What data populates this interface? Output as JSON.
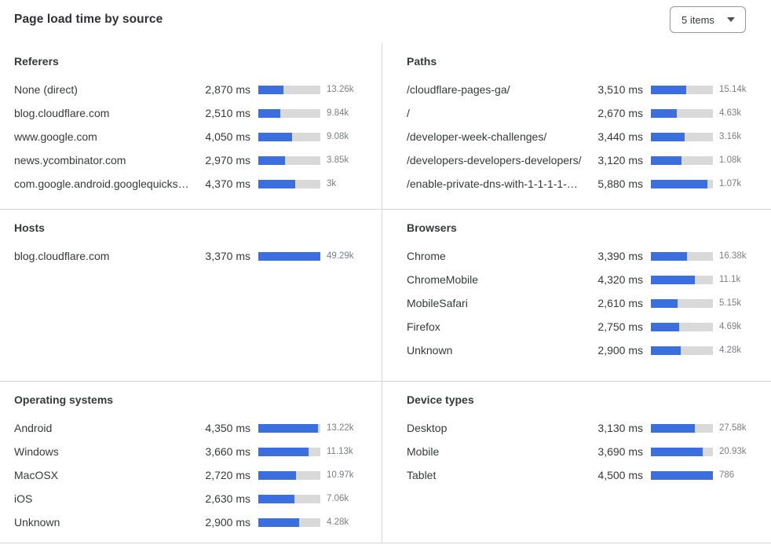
{
  "page": {
    "title": "Page load time by source"
  },
  "controls": {
    "items_dropdown": {
      "value": "5 items"
    }
  },
  "colors": {
    "bar_fill": "#3b6fe0",
    "bar_track": "#d9d9d9"
  },
  "chart_data": {
    "type": "bar",
    "unit": "ms",
    "layout": "6 panels in a 2x3 grid; each row shows a horizontal bar whose length encodes page load time in ms; gray number at right is the sample count",
    "panels": [
      {
        "id": "referers",
        "title": "Referers",
        "rows": [
          {
            "label": "None (direct)",
            "ms": 2870,
            "ms_label": "2,870 ms",
            "count": "13.26k",
            "bar_pct": 41
          },
          {
            "label": "blog.cloudflare.com",
            "ms": 2510,
            "ms_label": "2,510 ms",
            "count": "9.84k",
            "bar_pct": 36
          },
          {
            "label": "www.google.com",
            "ms": 4050,
            "ms_label": "4,050 ms",
            "count": "9.08k",
            "bar_pct": 55
          },
          {
            "label": "news.ycombinator.com",
            "ms": 2970,
            "ms_label": "2,970 ms",
            "count": "3.85k",
            "bar_pct": 43
          },
          {
            "label": "com.google.android.googlequicksearc…",
            "ms": 4370,
            "ms_label": "4,370 ms",
            "count": "3k",
            "bar_pct": 60
          }
        ]
      },
      {
        "id": "paths",
        "title": "Paths",
        "rows": [
          {
            "label": "/cloudflare-pages-ga/",
            "ms": 3510,
            "ms_label": "3,510 ms",
            "count": "15.14k",
            "bar_pct": 57
          },
          {
            "label": "/",
            "ms": 2670,
            "ms_label": "2,670 ms",
            "count": "4.63k",
            "bar_pct": 42
          },
          {
            "label": "/developer-week-challenges/",
            "ms": 3440,
            "ms_label": "3,440 ms",
            "count": "3.16k",
            "bar_pct": 54
          },
          {
            "label": "/developers-developers-developers/",
            "ms": 3120,
            "ms_label": "3,120 ms",
            "count": "1.08k",
            "bar_pct": 49
          },
          {
            "label": "/enable-private-dns-with-1-1-1-1-on-…",
            "ms": 5880,
            "ms_label": "5,880 ms",
            "count": "1.07k",
            "bar_pct": 91
          }
        ]
      },
      {
        "id": "hosts",
        "title": "Hosts",
        "rows": [
          {
            "label": "blog.cloudflare.com",
            "ms": 3370,
            "ms_label": "3,370 ms",
            "count": "49.29k",
            "bar_pct": 100
          }
        ]
      },
      {
        "id": "browsers",
        "title": "Browsers",
        "rows": [
          {
            "label": "Chrome",
            "ms": 3390,
            "ms_label": "3,390 ms",
            "count": "16.38k",
            "bar_pct": 58
          },
          {
            "label": "ChromeMobile",
            "ms": 4320,
            "ms_label": "4,320 ms",
            "count": "11.1k",
            "bar_pct": 71
          },
          {
            "label": "MobileSafari",
            "ms": 2610,
            "ms_label": "2,610 ms",
            "count": "5.15k",
            "bar_pct": 43
          },
          {
            "label": "Firefox",
            "ms": 2750,
            "ms_label": "2,750 ms",
            "count": "4.69k",
            "bar_pct": 46
          },
          {
            "label": "Unknown",
            "ms": 2900,
            "ms_label": "2,900 ms",
            "count": "4.28k",
            "bar_pct": 48
          }
        ]
      },
      {
        "id": "operating-systems",
        "title": "Operating systems",
        "rows": [
          {
            "label": "Android",
            "ms": 4350,
            "ms_label": "4,350 ms",
            "count": "13.22k",
            "bar_pct": 96
          },
          {
            "label": "Windows",
            "ms": 3660,
            "ms_label": "3,660 ms",
            "count": "11.13k",
            "bar_pct": 81
          },
          {
            "label": "MacOSX",
            "ms": 2720,
            "ms_label": "2,720 ms",
            "count": "10.97k",
            "bar_pct": 61
          },
          {
            "label": "iOS",
            "ms": 2630,
            "ms_label": "2,630 ms",
            "count": "7.06k",
            "bar_pct": 58
          },
          {
            "label": "Unknown",
            "ms": 2900,
            "ms_label": "2,900 ms",
            "count": "4.28k",
            "bar_pct": 66
          }
        ]
      },
      {
        "id": "device-types",
        "title": "Device types",
        "rows": [
          {
            "label": "Desktop",
            "ms": 3130,
            "ms_label": "3,130 ms",
            "count": "27.58k",
            "bar_pct": 71
          },
          {
            "label": "Mobile",
            "ms": 3690,
            "ms_label": "3,690 ms",
            "count": "20.93k",
            "bar_pct": 84
          },
          {
            "label": "Tablet",
            "ms": 4500,
            "ms_label": "4,500 ms",
            "count": "786",
            "bar_pct": 100
          }
        ]
      }
    ]
  }
}
